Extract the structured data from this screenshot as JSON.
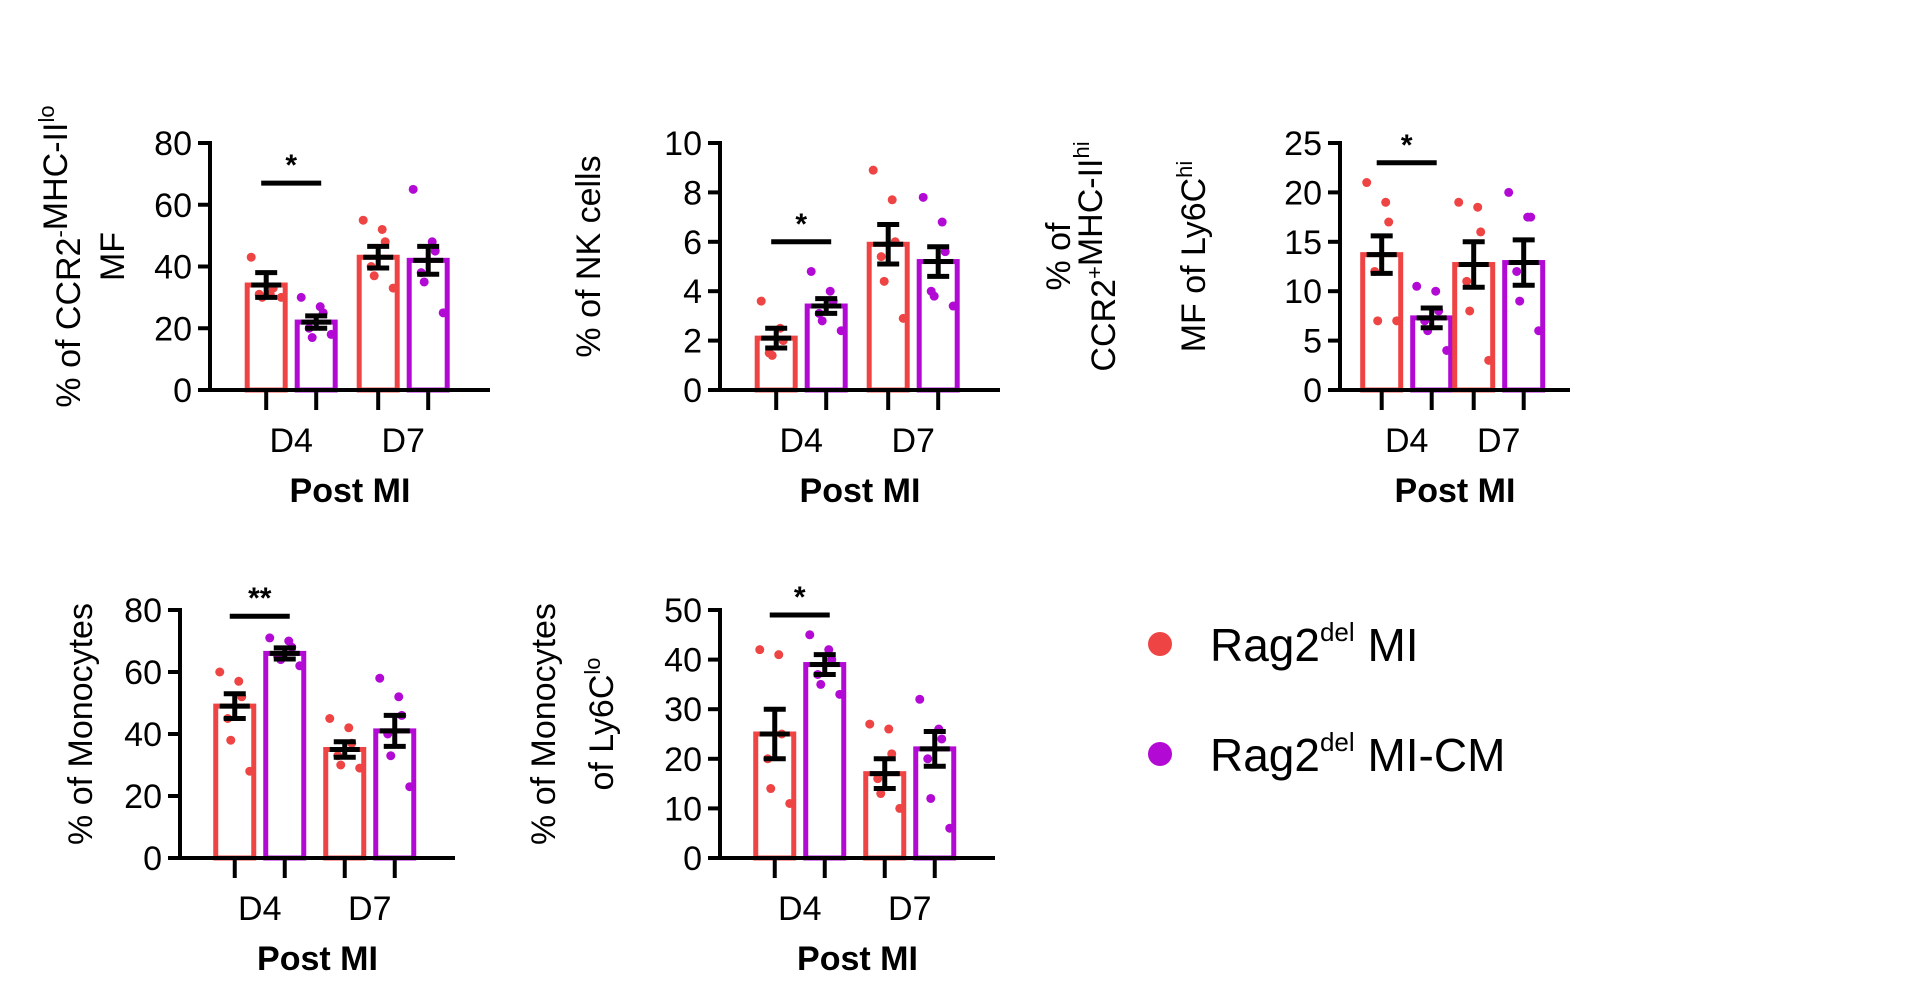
{
  "colors": {
    "rag2_mi": "#ee4444",
    "rag2_mi_cm": "#b20ad4",
    "axis": "#000000"
  },
  "legend": {
    "items": [
      {
        "base": "Rag2",
        "sup": "del",
        "rest": " MI",
        "color": "#ee4444"
      },
      {
        "base": "Rag2",
        "sup": "del",
        "rest": " MI-CM",
        "color": "#b20ad4"
      }
    ]
  },
  "chart_data": [
    {
      "type": "bar",
      "ylabel_lines": [
        [
          {
            "t": "% of CCR2"
          },
          {
            "t": "-",
            "sup": true
          },
          {
            "t": "MHC-II"
          },
          {
            "t": "lo",
            "sup": true
          }
        ],
        [
          {
            "t": "MF"
          }
        ]
      ],
      "xlabel": "Post MI",
      "categories": [
        "D4",
        "D7"
      ],
      "ylim": [
        0,
        80
      ],
      "yticks": [
        0,
        20,
        40,
        60,
        80
      ],
      "series": [
        {
          "name": "Rag2del MI",
          "values": [
            34,
            43
          ],
          "sem": [
            4,
            3.5
          ],
          "points": [
            [
              43,
              31,
              33,
              31,
              30,
              30
            ],
            [
              55,
              52,
              48,
              40,
              37,
              33
            ]
          ]
        },
        {
          "name": "Rag2del MI-CM",
          "values": [
            22,
            42
          ],
          "sem": [
            2,
            4.5
          ],
          "points": [
            [
              30,
              27,
              25,
              20,
              17,
              18
            ],
            [
              65,
              48,
              45,
              38,
              35,
              25
            ]
          ]
        }
      ],
      "significance": [
        {
          "category": "D4",
          "label": "*",
          "y": 67
        }
      ]
    },
    {
      "type": "bar",
      "ylabel_lines": [
        [
          {
            "t": "% of NK cells"
          }
        ]
      ],
      "xlabel": "Post MI",
      "categories": [
        "D4",
        "D7"
      ],
      "ylim": [
        0,
        10
      ],
      "yticks": [
        0,
        2,
        4,
        6,
        8,
        10
      ],
      "series": [
        {
          "name": "Rag2del MI",
          "values": [
            2.1,
            5.9
          ],
          "sem": [
            0.4,
            0.8
          ],
          "points": [
            [
              3.6,
              2.5,
              2.0,
              1.5,
              1.4
            ],
            [
              8.9,
              7.7,
              6.0,
              5.4,
              4.4,
              2.9
            ]
          ]
        },
        {
          "name": "Rag2del MI-CM",
          "values": [
            3.4,
            5.2
          ],
          "sem": [
            0.3,
            0.6
          ],
          "points": [
            [
              4.8,
              4.0,
              3.6,
              3.1,
              2.8,
              2.4
            ],
            [
              7.8,
              6.8,
              5.6,
              4.0,
              3.8,
              3.4
            ]
          ]
        }
      ],
      "significance": [
        {
          "category": "D4",
          "label": "*",
          "y": 6.0
        }
      ]
    },
    {
      "type": "bar",
      "ylabel_lines": [
        [
          {
            "t": "% of"
          }
        ],
        [
          {
            "t": "CCR2"
          },
          {
            "t": "+",
            "sup": true
          },
          {
            "t": "MHC-II"
          },
          {
            "t": "hi",
            "sup": true
          }
        ],
        [
          {
            "t": "MF of Ly6C"
          },
          {
            "t": "hi",
            "sup": true
          }
        ]
      ],
      "xlabel": "Post MI",
      "categories": [
        "D4",
        "D7"
      ],
      "ylim": [
        0,
        25
      ],
      "yticks": [
        0,
        5,
        10,
        15,
        20,
        25
      ],
      "series": [
        {
          "name": "Rag2del MI",
          "values": [
            13.7,
            12.7
          ],
          "sem": [
            1.9,
            2.3
          ],
          "points": [
            [
              21,
              19,
              17,
              12,
              7,
              7
            ],
            [
              19,
              18.5,
              16,
              11,
              8,
              3
            ]
          ]
        },
        {
          "name": "Rag2del MI-CM",
          "values": [
            7.3,
            12.9
          ],
          "sem": [
            1.0,
            2.3
          ],
          "points": [
            [
              10.5,
              10,
              8,
              7,
              6,
              4
            ],
            [
              20,
              17.5,
              17.5,
              12,
              9,
              6
            ]
          ]
        }
      ],
      "significance": [
        {
          "category": "D4",
          "label": "*",
          "y": 23
        }
      ]
    },
    {
      "type": "bar",
      "ylabel_lines": [
        [
          {
            "t": "% of Monocytes"
          }
        ]
      ],
      "xlabel": "Post MI",
      "categories": [
        "D4",
        "D7"
      ],
      "ylim": [
        0,
        80
      ],
      "yticks": [
        0,
        20,
        40,
        60,
        80
      ],
      "series": [
        {
          "name": "Rag2del MI",
          "values": [
            49,
            35
          ],
          "sem": [
            4,
            2.5
          ],
          "points": [
            [
              60,
              57,
              52,
              45,
              38,
              28
            ],
            [
              45,
              42,
              37,
              33,
              30,
              29
            ]
          ]
        },
        {
          "name": "Rag2del MI-CM",
          "values": [
            66,
            41
          ],
          "sem": [
            1.8,
            5
          ],
          "points": [
            [
              71,
              70,
              68,
              65,
              64,
              62
            ],
            [
              58,
              52,
              46,
              40,
              33,
              23
            ]
          ]
        }
      ],
      "significance": [
        {
          "category": "D4",
          "label": "**",
          "y": 78
        }
      ]
    },
    {
      "type": "bar",
      "ylabel_lines": [
        [
          {
            "t": "% of Monocytes"
          }
        ],
        [
          {
            "t": "of Ly6C"
          },
          {
            "t": "lo",
            "sup": true
          }
        ]
      ],
      "xlabel": "Post MI",
      "categories": [
        "D4",
        "D7"
      ],
      "ylim": [
        0,
        50
      ],
      "yticks": [
        0,
        10,
        20,
        30,
        40,
        50
      ],
      "series": [
        {
          "name": "Rag2del MI",
          "values": [
            25,
            17
          ],
          "sem": [
            5,
            3
          ],
          "points": [
            [
              42,
              41,
              25,
              20,
              14,
              11
            ],
            [
              27,
              26,
              21,
              16,
              13,
              10
            ]
          ]
        },
        {
          "name": "Rag2del MI-CM",
          "values": [
            39,
            22
          ],
          "sem": [
            2,
            3.5
          ],
          "points": [
            [
              45,
              42,
              40,
              37,
              35,
              33
            ],
            [
              32,
              26,
              24,
              20,
              12,
              6
            ]
          ]
        }
      ],
      "significance": [
        {
          "category": "D4",
          "label": "*",
          "y": 49
        }
      ]
    }
  ]
}
